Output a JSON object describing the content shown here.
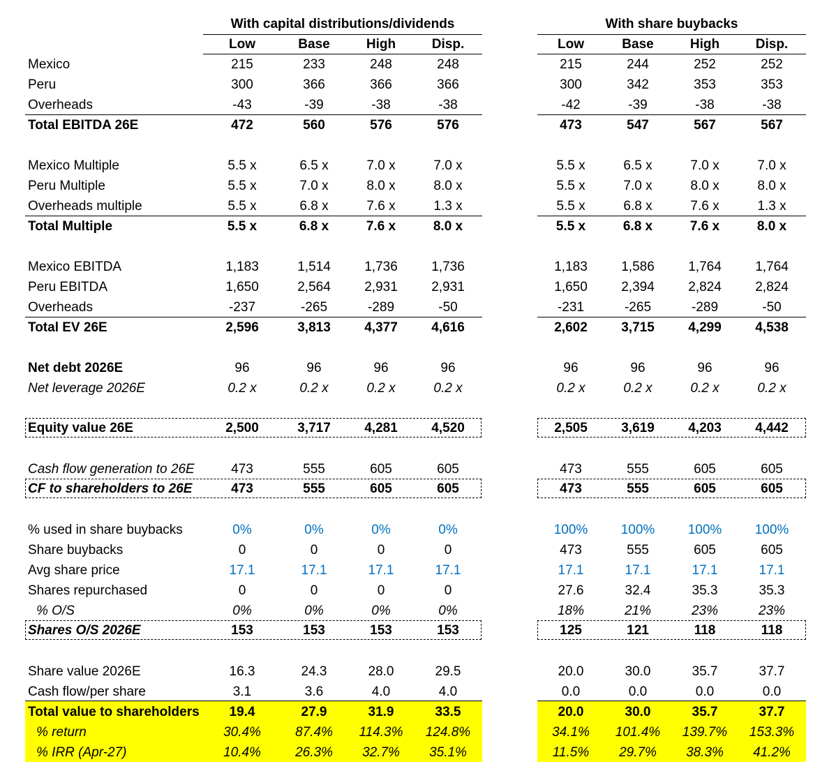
{
  "headers": {
    "group_left": "With capital distributions/dividends",
    "group_right": "With share buybacks",
    "cols": [
      "Low",
      "Base",
      "High",
      "Disp."
    ]
  },
  "rows": [
    {
      "label": "Mexico",
      "values": [
        "215",
        "233",
        "248",
        "248",
        "215",
        "244",
        "252",
        "252"
      ]
    },
    {
      "label": "Peru",
      "values": [
        "300",
        "366",
        "366",
        "366",
        "300",
        "342",
        "353",
        "353"
      ]
    },
    {
      "label": "Overheads",
      "values": [
        "-43",
        "-39",
        "-38",
        "-38",
        "-42",
        "-39",
        "-38",
        "-38"
      ]
    },
    {
      "label": "Total EBITDA 26E",
      "values": [
        "472",
        "560",
        "576",
        "576",
        "473",
        "547",
        "567",
        "567"
      ]
    },
    {
      "label": "Mexico Multiple",
      "values": [
        "5.5 x",
        "6.5 x",
        "7.0 x",
        "7.0 x",
        "5.5 x",
        "6.5 x",
        "7.0 x",
        "7.0 x"
      ]
    },
    {
      "label": "Peru Multiple",
      "values": [
        "5.5 x",
        "7.0 x",
        "8.0 x",
        "8.0 x",
        "5.5 x",
        "7.0 x",
        "8.0 x",
        "8.0 x"
      ]
    },
    {
      "label": "Overheads multiple",
      "values": [
        "5.5 x",
        "6.8 x",
        "7.6 x",
        "1.3 x",
        "5.5 x",
        "6.8 x",
        "7.6 x",
        "1.3 x"
      ]
    },
    {
      "label": "Total Multiple",
      "values": [
        "5.5 x",
        "6.8 x",
        "7.6 x",
        "8.0 x",
        "5.5 x",
        "6.8 x",
        "7.6 x",
        "8.0 x"
      ]
    },
    {
      "label": "Mexico EBITDA",
      "values": [
        "1,183",
        "1,514",
        "1,736",
        "1,736",
        "1,183",
        "1,586",
        "1,764",
        "1,764"
      ]
    },
    {
      "label": "Peru EBITDA",
      "values": [
        "1,650",
        "2,564",
        "2,931",
        "2,931",
        "1,650",
        "2,394",
        "2,824",
        "2,824"
      ]
    },
    {
      "label": "Overheads",
      "values": [
        "-237",
        "-265",
        "-289",
        "-50",
        "-231",
        "-265",
        "-289",
        "-50"
      ]
    },
    {
      "label": "Total EV 26E",
      "values": [
        "2,596",
        "3,813",
        "4,377",
        "4,616",
        "2,602",
        "3,715",
        "4,299",
        "4,538"
      ]
    },
    {
      "label": "Net debt 2026E",
      "values": [
        "96",
        "96",
        "96",
        "96",
        "96",
        "96",
        "96",
        "96"
      ]
    },
    {
      "label": "Net leverage 2026E",
      "values": [
        "0.2 x",
        "0.2 x",
        "0.2 x",
        "0.2 x",
        "0.2 x",
        "0.2 x",
        "0.2 x",
        "0.2 x"
      ]
    },
    {
      "label": "Equity value 26E",
      "values": [
        "2,500",
        "3,717",
        "4,281",
        "4,520",
        "2,505",
        "3,619",
        "4,203",
        "4,442"
      ]
    },
    {
      "label": "Cash flow generation to 26E",
      "values": [
        "473",
        "555",
        "605",
        "605",
        "473",
        "555",
        "605",
        "605"
      ]
    },
    {
      "label": "CF to shareholders to 26E",
      "values": [
        "473",
        "555",
        "605",
        "605",
        "473",
        "555",
        "605",
        "605"
      ]
    },
    {
      "label": "% used in share buybacks",
      "values": [
        "0%",
        "0%",
        "0%",
        "0%",
        "100%",
        "100%",
        "100%",
        "100%"
      ]
    },
    {
      "label": "Share buybacks",
      "values": [
        "0",
        "0",
        "0",
        "0",
        "473",
        "555",
        "605",
        "605"
      ]
    },
    {
      "label": "Avg share price",
      "values": [
        "17.1",
        "17.1",
        "17.1",
        "17.1",
        "17.1",
        "17.1",
        "17.1",
        "17.1"
      ]
    },
    {
      "label": "Shares repurchased",
      "values": [
        "0",
        "0",
        "0",
        "0",
        "27.6",
        "32.4",
        "35.3",
        "35.3"
      ]
    },
    {
      "label": "% O/S",
      "values": [
        "0%",
        "0%",
        "0%",
        "0%",
        "18%",
        "21%",
        "23%",
        "23%"
      ]
    },
    {
      "label": "Shares O/S 2026E",
      "values": [
        "153",
        "153",
        "153",
        "153",
        "125",
        "121",
        "118",
        "118"
      ]
    },
    {
      "label": "Share value 2026E",
      "values": [
        "16.3",
        "24.3",
        "28.0",
        "29.5",
        "20.0",
        "30.0",
        "35.7",
        "37.7"
      ]
    },
    {
      "label": "Cash flow/per share",
      "values": [
        "3.1",
        "3.6",
        "4.0",
        "4.0",
        "0.0",
        "0.0",
        "0.0",
        "0.0"
      ]
    },
    {
      "label": "Total value to shareholders",
      "values": [
        "19.4",
        "27.9",
        "31.9",
        "33.5",
        "20.0",
        "30.0",
        "35.7",
        "37.7"
      ]
    },
    {
      "label": "% return",
      "values": [
        "30.4%",
        "87.4%",
        "114.3%",
        "124.8%",
        "34.1%",
        "101.4%",
        "139.7%",
        "153.3%"
      ]
    },
    {
      "label": "% IRR (Apr-27)",
      "values": [
        "10.4%",
        "26.3%",
        "32.7%",
        "35.1%",
        "11.5%",
        "29.7%",
        "38.3%",
        "41.2%"
      ]
    }
  ],
  "colors": {
    "input_blue": "#0070c0",
    "highlight_yellow": "#ffff00"
  }
}
